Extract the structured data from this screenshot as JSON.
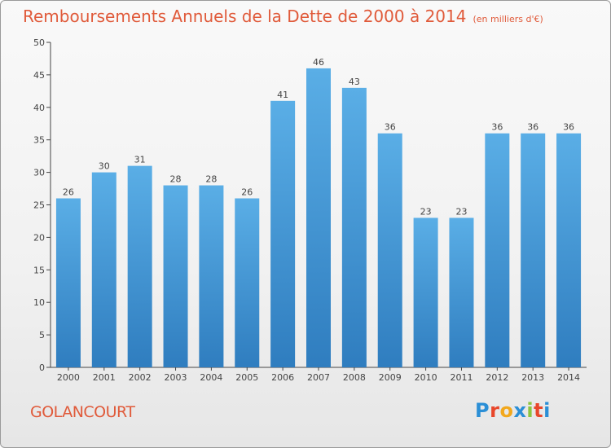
{
  "chart_data": {
    "type": "bar",
    "title": "Remboursements Annuels de la Dette de 2000 à 2014",
    "unit": "(en milliers d'€)",
    "categories": [
      "2000",
      "2001",
      "2002",
      "2003",
      "2004",
      "2005",
      "2006",
      "2007",
      "2008",
      "2009",
      "2010",
      "2011",
      "2012",
      "2013",
      "2014"
    ],
    "values": [
      26,
      30,
      31,
      28,
      28,
      26,
      41,
      46,
      43,
      36,
      23,
      23,
      36,
      36,
      36
    ],
    "ylim": [
      0,
      50
    ],
    "yticks": [
      0,
      5,
      10,
      15,
      20,
      25,
      30,
      35,
      40,
      45,
      50
    ],
    "grid": false,
    "bar_color_top": "#5aaee6",
    "bar_color_bottom": "#2f7dbf"
  },
  "commune": "GOLANCOURT",
  "logo": {
    "letters": [
      "P",
      "r",
      "o",
      "x",
      "i",
      "t",
      "i"
    ],
    "colors": [
      "#2b8fd6",
      "#e8472b",
      "#f2a81d",
      "#2b8fd6",
      "#8cc63f",
      "#e8472b",
      "#2b8fd6"
    ]
  }
}
